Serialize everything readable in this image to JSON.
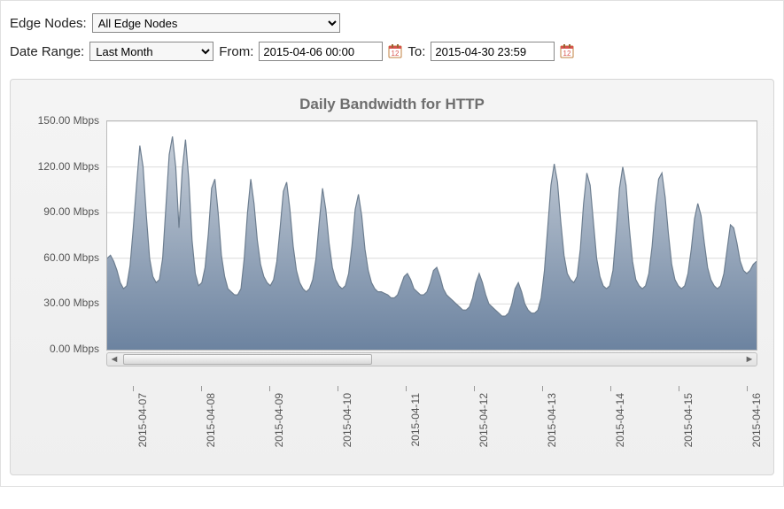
{
  "filters": {
    "edge_label": "Edge Nodes:",
    "edge_value": "All Edge Nodes",
    "daterange_label": "Date Range:",
    "daterange_value": "Last Month",
    "from_label": "From:",
    "from_value": "2015-04-06 00:00",
    "to_label": "To:",
    "to_value": "2015-04-30 23:59"
  },
  "chart": {
    "type": "area",
    "title": "Daily Bandwidth for HTTP",
    "title_fontsize": 17,
    "title_color": "#6e6e6e",
    "plot_background": "#ffffff",
    "panel_background": "#f1f1f1",
    "grid_color": "#dcdcdc",
    "line_color": "#6d7e90",
    "line_width": 1.2,
    "fill_top": "#c6ced8",
    "fill_bottom": "#6c83a0",
    "y": {
      "min": 0,
      "max": 150,
      "step": 30,
      "unit_suffix": " Mbps",
      "ticks": [
        "0.00 Mbps",
        "30.00 Mbps",
        "60.00 Mbps",
        "90.00 Mbps",
        "120.00 Mbps",
        "150.00 Mbps"
      ]
    },
    "x_labels": [
      "2015-04-07",
      "2015-04-08",
      "2015-04-09",
      "2015-04-10",
      "2015-04-11",
      "2015-04-12",
      "2015-04-13",
      "2015-04-14",
      "2015-04-15",
      "2015-04-16"
    ],
    "scrollbar": {
      "thumb_position_pct": 0,
      "thumb_width_pct": 40
    },
    "values": [
      60,
      62,
      58,
      52,
      44,
      40,
      42,
      55,
      80,
      108,
      134,
      120,
      88,
      60,
      48,
      44,
      46,
      60,
      94,
      128,
      140,
      120,
      80,
      118,
      138,
      112,
      72,
      50,
      42,
      44,
      54,
      76,
      106,
      112,
      90,
      62,
      48,
      40,
      38,
      36,
      36,
      40,
      60,
      90,
      112,
      96,
      72,
      56,
      48,
      44,
      42,
      46,
      58,
      80,
      104,
      110,
      92,
      68,
      52,
      44,
      40,
      38,
      40,
      46,
      60,
      84,
      106,
      92,
      70,
      54,
      46,
      42,
      40,
      42,
      50,
      68,
      92,
      102,
      88,
      66,
      52,
      44,
      40,
      38,
      38,
      37,
      36,
      34,
      34,
      36,
      42,
      48,
      50,
      46,
      40,
      38,
      36,
      36,
      38,
      44,
      52,
      54,
      48,
      40,
      36,
      34,
      32,
      30,
      28,
      26,
      26,
      28,
      34,
      44,
      50,
      44,
      36,
      30,
      28,
      26,
      24,
      22,
      22,
      24,
      30,
      40,
      44,
      38,
      30,
      26,
      24,
      24,
      26,
      34,
      52,
      80,
      108,
      122,
      110,
      84,
      62,
      50,
      46,
      44,
      48,
      66,
      96,
      116,
      108,
      84,
      60,
      48,
      42,
      40,
      42,
      52,
      78,
      106,
      120,
      108,
      80,
      58,
      46,
      42,
      40,
      42,
      50,
      68,
      94,
      112,
      116,
      100,
      76,
      56,
      46,
      42,
      40,
      42,
      50,
      66,
      86,
      96,
      88,
      70,
      54,
      46,
      42,
      40,
      42,
      50,
      66,
      82,
      80,
      70,
      58,
      52,
      50,
      52,
      56,
      58
    ]
  }
}
